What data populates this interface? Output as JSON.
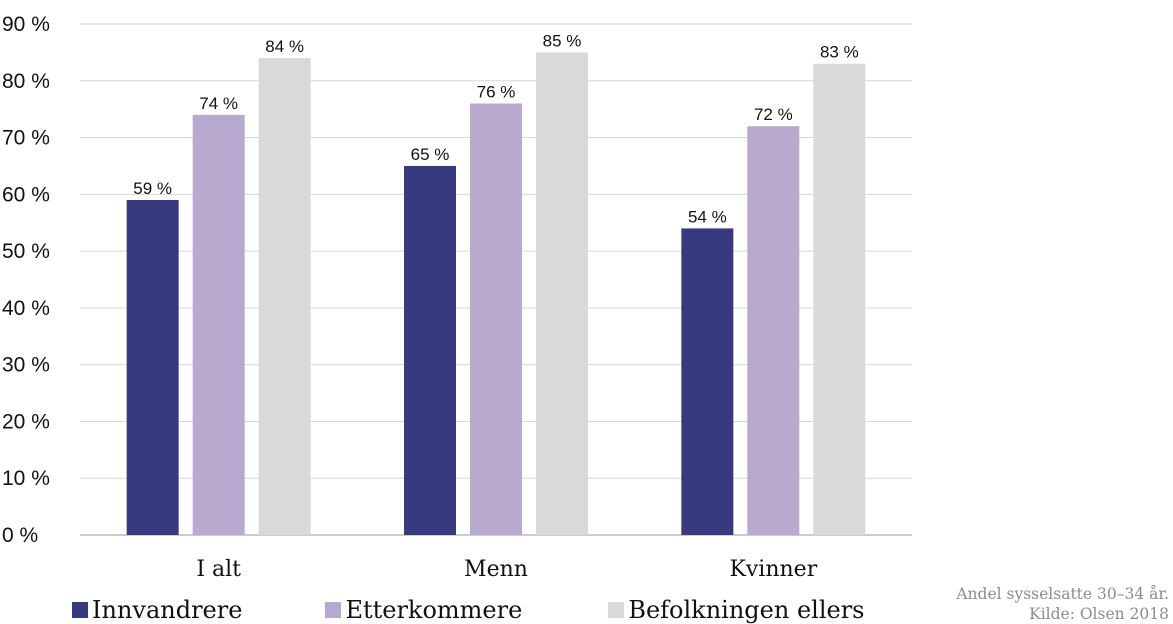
{
  "chart_data": {
    "type": "bar",
    "categories": [
      "I alt",
      "Menn",
      "Kvinner"
    ],
    "series": [
      {
        "name": "Innvandrere",
        "values": [
          59,
          65,
          54
        ],
        "color": "#373a7e"
      },
      {
        "name": "Etterkommere",
        "values": [
          74,
          76,
          72
        ],
        "color": "#b8a9cf"
      },
      {
        "name": "Befolkningen ellers",
        "values": [
          84,
          85,
          83
        ],
        "color": "#d9d9da"
      }
    ],
    "data_labels": [
      [
        "59 %",
        "74 %",
        "84 %"
      ],
      [
        "65 %",
        "76 %",
        "85 %"
      ],
      [
        "54 %",
        "72 %",
        "83 %"
      ]
    ],
    "y_ticks": [
      "0 %",
      "10 %",
      "20 %",
      "30 %",
      "40 %",
      "50 %",
      "60 %",
      "70 %",
      "80 %",
      "90 %"
    ],
    "ylim": [
      0,
      90
    ],
    "grid": true,
    "legend_position": "bottom-left"
  },
  "note": {
    "line1": "Andel sysselsatte 30–34 år.",
    "line2": "Kilde: Olsen 2018"
  }
}
